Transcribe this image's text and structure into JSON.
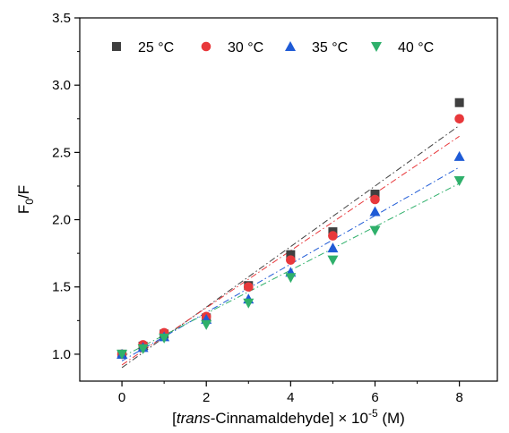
{
  "chart_data": {
    "type": "scatter",
    "title": "",
    "xlabel_parts": [
      "[",
      "trans",
      "-Cinnamaldehyde] × 10",
      "-5",
      " (M)"
    ],
    "ylabel_parts": [
      "F",
      "0",
      "/F"
    ],
    "xlim": [
      -1,
      8.9
    ],
    "ylim": [
      0.8,
      3.5
    ],
    "xticks": [
      0,
      2,
      4,
      6,
      8
    ],
    "yticks": [
      1.0,
      1.5,
      2.0,
      2.5,
      3.0,
      3.5
    ],
    "ytick_labels": [
      "1.0",
      "1.5",
      "2.0",
      "2.5",
      "3.0",
      "3.5"
    ],
    "legend_position": "top",
    "x": [
      0,
      0.5,
      1,
      2,
      3,
      4,
      5,
      6,
      8
    ],
    "series": [
      {
        "name": "25 °C",
        "marker": "square",
        "color": "#404040",
        "values": [
          1.0,
          1.06,
          1.15,
          1.27,
          1.51,
          1.74,
          1.91,
          2.19,
          2.87
        ],
        "fit_start": [
          0,
          0.9
        ],
        "fit_end": [
          8,
          2.7
        ]
      },
      {
        "name": "30 °C",
        "marker": "circle",
        "color": "#e8383b",
        "values": [
          1.0,
          1.07,
          1.16,
          1.28,
          1.5,
          1.7,
          1.88,
          2.15,
          2.75
        ],
        "fit_start": [
          0,
          0.92
        ],
        "fit_end": [
          8,
          2.62
        ]
      },
      {
        "name": "35 °C",
        "marker": "triangle-up",
        "color": "#1f5bd6",
        "values": [
          1.0,
          1.05,
          1.13,
          1.26,
          1.41,
          1.61,
          1.79,
          2.06,
          2.47
        ],
        "fit_start": [
          0,
          0.95
        ],
        "fit_end": [
          8,
          2.39
        ]
      },
      {
        "name": "40 °C",
        "marker": "triangle-down",
        "color": "#2fb06b",
        "values": [
          1.0,
          1.04,
          1.12,
          1.22,
          1.38,
          1.57,
          1.7,
          1.92,
          2.29
        ],
        "fit_start": [
          0,
          0.98
        ],
        "fit_end": [
          8,
          2.27
        ]
      }
    ]
  }
}
